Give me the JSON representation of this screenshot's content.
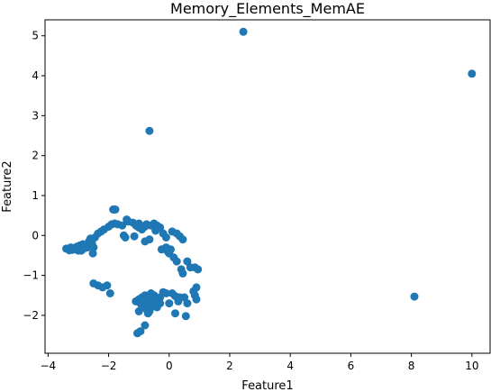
{
  "chart_data": {
    "type": "scatter",
    "title": "Memory_Elements_MemAE",
    "xlabel": "Feature1",
    "ylabel": "Feature2",
    "xlim": [
      -4.1,
      10.6
    ],
    "ylim": [
      -2.95,
      5.4
    ],
    "xticks": [
      -4,
      -2,
      0,
      2,
      4,
      6,
      8,
      10
    ],
    "yticks": [
      -2,
      -1,
      0,
      1,
      2,
      3,
      4,
      5
    ],
    "grid": false,
    "color": "#1f77b4",
    "series": [
      {
        "points": [
          [
            2.45,
            5.1
          ],
          [
            10.0,
            4.05
          ],
          [
            -0.65,
            2.62
          ],
          [
            8.1,
            -1.53
          ],
          [
            -3.4,
            -0.33
          ],
          [
            -3.3,
            -0.37
          ],
          [
            -3.2,
            -0.36
          ],
          [
            -3.1,
            -0.35
          ],
          [
            -3.0,
            -0.38
          ],
          [
            -2.9,
            -0.38
          ],
          [
            -2.8,
            -0.32
          ],
          [
            -2.7,
            -0.3
          ],
          [
            -3.25,
            -0.3
          ],
          [
            -3.05,
            -0.28
          ],
          [
            -2.95,
            -0.25
          ],
          [
            -2.85,
            -0.22
          ],
          [
            -2.65,
            -0.15
          ],
          [
            -2.55,
            -0.2
          ],
          [
            -2.5,
            -0.3
          ],
          [
            -2.52,
            -0.45
          ],
          [
            -2.6,
            -0.08
          ],
          [
            -2.45,
            -0.05
          ],
          [
            -2.35,
            0.05
          ],
          [
            -2.25,
            0.1
          ],
          [
            -2.15,
            0.15
          ],
          [
            -2.0,
            0.22
          ],
          [
            -1.9,
            0.28
          ],
          [
            -1.8,
            0.3
          ],
          [
            -1.7,
            0.28
          ],
          [
            -1.85,
            0.65
          ],
          [
            -1.78,
            0.65
          ],
          [
            -1.55,
            0.25
          ],
          [
            -1.4,
            0.4
          ],
          [
            -1.35,
            0.35
          ],
          [
            -1.2,
            0.32
          ],
          [
            -1.1,
            0.25
          ],
          [
            -1.0,
            0.2
          ],
          [
            -0.9,
            0.15
          ],
          [
            -0.8,
            0.22
          ],
          [
            -1.0,
            0.3
          ],
          [
            -0.75,
            0.28
          ],
          [
            -0.6,
            0.25
          ],
          [
            -0.5,
            0.3
          ],
          [
            -0.4,
            0.25
          ],
          [
            -0.3,
            0.2
          ],
          [
            -0.2,
            0.05
          ],
          [
            -0.1,
            -0.05
          ],
          [
            0.1,
            0.1
          ],
          [
            0.25,
            0.05
          ],
          [
            0.35,
            -0.02
          ],
          [
            0.45,
            -0.1
          ],
          [
            -1.5,
            0.0
          ],
          [
            -1.45,
            -0.05
          ],
          [
            -1.15,
            -0.02
          ],
          [
            -0.8,
            -0.15
          ],
          [
            -0.65,
            -0.1
          ],
          [
            -0.45,
            0.12
          ],
          [
            -0.1,
            -0.3
          ],
          [
            0.0,
            -0.45
          ],
          [
            0.15,
            -0.55
          ],
          [
            0.05,
            -0.35
          ],
          [
            -0.25,
            -0.35
          ],
          [
            -0.05,
            -0.4
          ],
          [
            0.25,
            -0.65
          ],
          [
            0.4,
            -0.85
          ],
          [
            0.45,
            -0.95
          ],
          [
            0.6,
            -0.65
          ],
          [
            0.7,
            -0.8
          ],
          [
            0.85,
            -0.8
          ],
          [
            0.95,
            -0.85
          ],
          [
            -2.5,
            -1.2
          ],
          [
            -2.35,
            -1.25
          ],
          [
            -2.2,
            -1.3
          ],
          [
            -2.05,
            -1.25
          ],
          [
            -1.95,
            -1.45
          ],
          [
            -1.1,
            -1.65
          ],
          [
            -1.0,
            -1.6
          ],
          [
            -0.9,
            -1.55
          ],
          [
            -0.8,
            -1.5
          ],
          [
            -0.7,
            -1.55
          ],
          [
            -0.6,
            -1.45
          ],
          [
            -0.5,
            -1.5
          ],
          [
            -0.4,
            -1.6
          ],
          [
            -0.3,
            -1.55
          ],
          [
            -0.2,
            -1.42
          ],
          [
            -0.1,
            -1.45
          ],
          [
            0.1,
            -1.45
          ],
          [
            0.2,
            -1.52
          ],
          [
            0.35,
            -1.55
          ],
          [
            0.5,
            -1.55
          ],
          [
            0.6,
            -1.7
          ],
          [
            0.8,
            -1.4
          ],
          [
            0.85,
            -1.5
          ],
          [
            0.9,
            -1.6
          ],
          [
            -1.0,
            -1.9
          ],
          [
            -0.9,
            -1.8
          ],
          [
            -0.8,
            -1.75
          ],
          [
            -0.7,
            -1.7
          ],
          [
            -0.6,
            -1.65
          ],
          [
            -0.5,
            -1.7
          ],
          [
            -0.4,
            -1.8
          ],
          [
            -0.95,
            -1.7
          ],
          [
            -0.85,
            -1.6
          ],
          [
            -0.75,
            -1.85
          ],
          [
            -0.65,
            -1.9
          ],
          [
            -0.55,
            -1.78
          ],
          [
            0.0,
            -1.7
          ],
          [
            0.2,
            -1.95
          ],
          [
            0.55,
            -2.02
          ],
          [
            0.9,
            -1.3
          ],
          [
            -0.8,
            -2.25
          ],
          [
            -1.05,
            -2.45
          ],
          [
            -0.95,
            -2.4
          ],
          [
            -0.7,
            -1.95
          ],
          [
            -0.3,
            -1.7
          ],
          [
            0.3,
            -1.65
          ]
        ]
      }
    ]
  }
}
